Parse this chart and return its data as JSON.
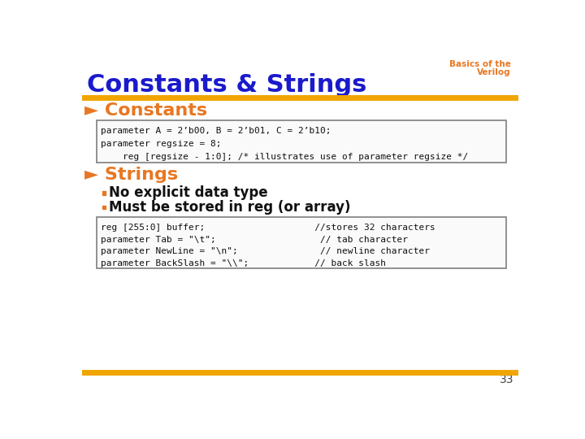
{
  "title": "Constants & Strings",
  "title_color": "#1A1ACC",
  "subtitle_line1": "Basics of the",
  "subtitle_line2": "Verilog",
  "subtitle_color": "#E87722",
  "header_line_color": "#F0A500",
  "bg_color": "#FFFFFF",
  "section1_header": "► Constants",
  "section1_color": "#E87722",
  "code_box1_lines": [
    "parameter A = 2’b00, B = 2’b01, C = 2’b10;",
    "parameter regsize = 8;",
    "    reg [regsize - 1:0]; /* illustrates use of parameter regsize */"
  ],
  "section2_header": "► Strings",
  "section2_color": "#E87722",
  "bullet_color": "#E87722",
  "bullet1": "No explicit data type",
  "bullet2": "Must be stored in reg (or array)",
  "code_box2_lines": [
    "reg [255:0] buffer;                    //stores 32 characters",
    "parameter Tab = \"\\t\";                   // tab character",
    "parameter NewLine = \"\\n\";               // newline character",
    "parameter BackSlash = \"\\\\\\\\\";            // back slash"
  ],
  "page_number": "33",
  "footer_line_color": "#F0A500"
}
